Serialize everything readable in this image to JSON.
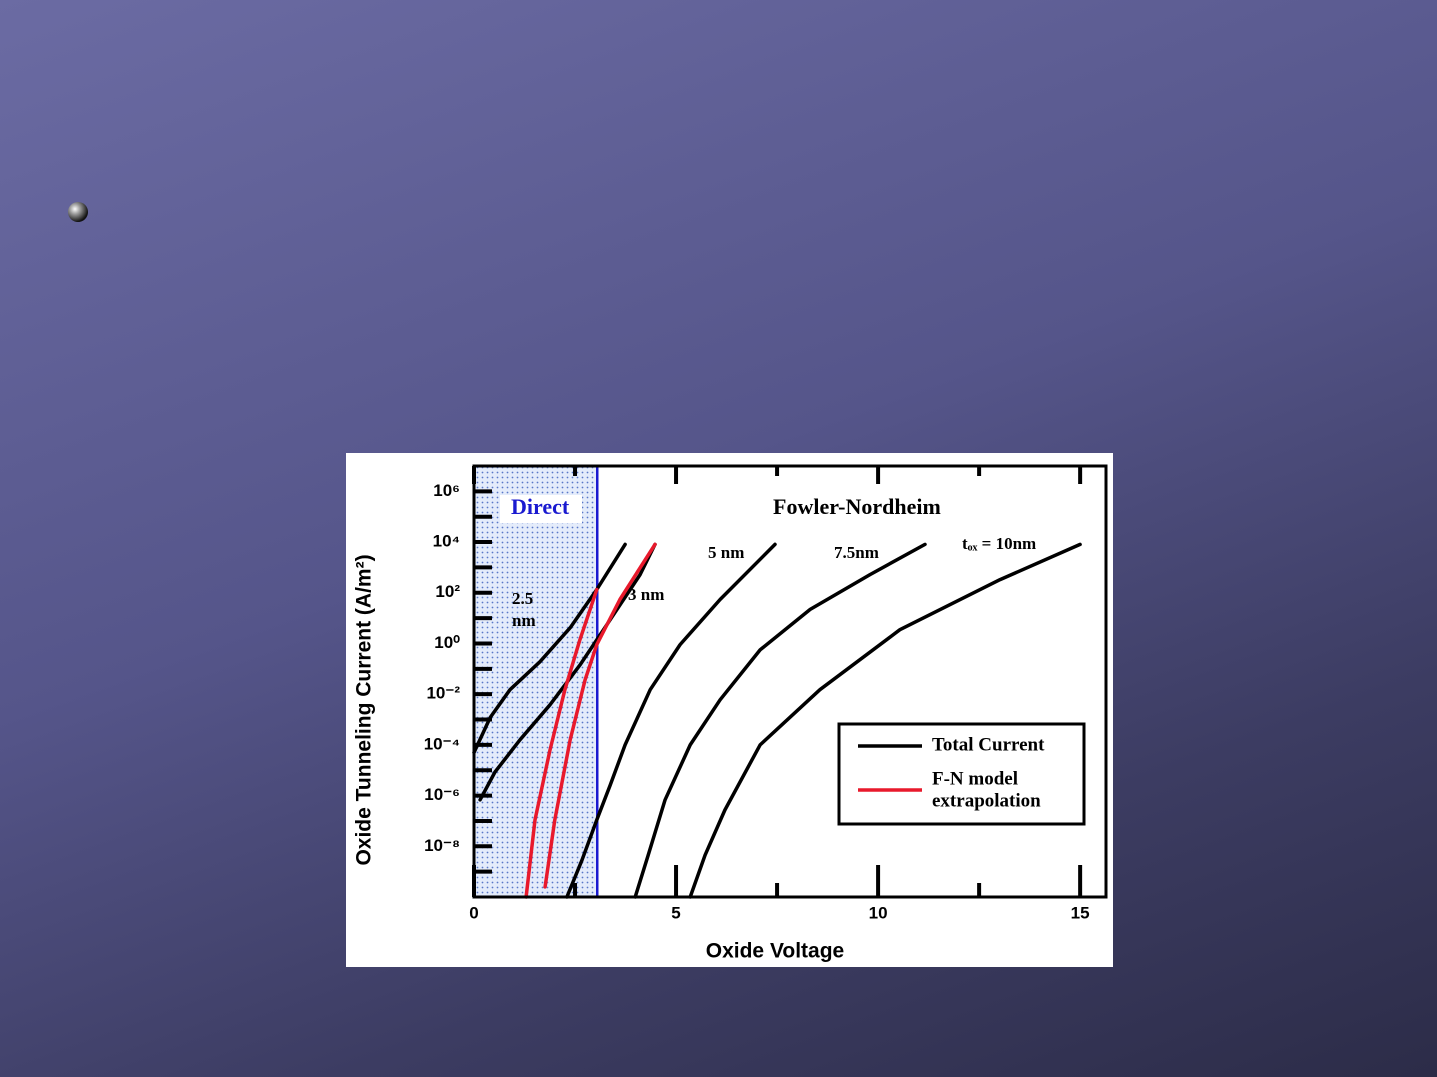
{
  "chart_data": {
    "type": "line",
    "xlabel": "Oxide Voltage",
    "ylabel": "Oxide Tunneling Current  (A/m²)",
    "xlim": [
      0,
      15.64
    ],
    "xticks": [
      0,
      5,
      10,
      15
    ],
    "xminorticks": [
      2.5,
      7.5,
      12.5
    ],
    "ylim": [
      1e-10,
      10000000.0
    ],
    "ylog": true,
    "yticks": [
      {
        "value": 1e-08,
        "label": "10⁻⁸"
      },
      {
        "value": 1e-06,
        "label": "10⁻⁶"
      },
      {
        "value": 0.0001,
        "label": "10⁻⁴"
      },
      {
        "value": 0.01,
        "label": "10⁻²"
      },
      {
        "value": 1,
        "label": "10⁰"
      },
      {
        "value": 100,
        "label": "10²"
      },
      {
        "value": 10000,
        "label": "10⁴"
      },
      {
        "value": 1000000,
        "label": "10⁶"
      }
    ],
    "yminorticks": [
      1e-09,
      1e-07,
      1e-05,
      0.001,
      0.1,
      10,
      1000,
      100000
    ],
    "direct_region": [
      0,
      3.05
    ],
    "region_labels": [
      "Direct",
      "Fowler-Nordheim"
    ],
    "legend": [
      {
        "label": [
          "Total Current"
        ],
        "color": "#000000"
      },
      {
        "label": [
          "F-N model",
          "extrapolation"
        ],
        "color": "#e8192c"
      }
    ],
    "series": [
      {
        "label": [
          "2.5",
          "nm"
        ],
        "color": "#000000",
        "x": [
          0,
          0.4,
          0.89,
          1.63,
          2.38,
          3.04,
          3.74
        ],
        "values": [
          5e-05,
          0.0012,
          0.015,
          0.19,
          4.2,
          135,
          8100
        ]
      },
      {
        "color": "#000000",
        "x": [
          0.15,
          0.52,
          1.14,
          1.88,
          2.62,
          3.37,
          4.11,
          4.48
        ],
        "values": [
          6.8e-07,
          8.5e-06,
          0.00016,
          0.0038,
          0.14,
          8.7,
          520,
          8100
        ]
      },
      {
        "color": "#e8192c",
        "x": [
          1.29,
          1.51,
          1.88,
          2.25,
          2.62,
          3.04
        ],
        "values": [
          1e-10,
          1.1e-07,
          6.3e-05,
          0.015,
          1.4,
          135
        ]
      },
      {
        "label": [
          "3 nm"
        ],
        "color": "#e8192c",
        "x": [
          1.76,
          2.0,
          2.38,
          2.75,
          3.04,
          3.61,
          4.48
        ],
        "values": [
          2.5e-10,
          1.1e-07,
          0.00016,
          0.037,
          0.9,
          54,
          8100
        ]
      },
      {
        "label": [
          "5 nm"
        ],
        "color": "#000000",
        "x": [
          2.3,
          2.67,
          3.04,
          3.37,
          3.74,
          4.36,
          5.1,
          6.09,
          7.45
        ],
        "values": [
          1e-10,
          2.8e-09,
          1.1e-07,
          2.6e-06,
          0.0001,
          0.015,
          0.9,
          54,
          8100
        ]
      },
      {
        "label": [
          "7.5nm"
        ],
        "color": "#000000",
        "x": [
          3.99,
          4.31,
          4.73,
          5.35,
          6.09,
          7.08,
          8.32,
          9.8,
          11.16
        ],
        "values": [
          1e-10,
          4.5e-09,
          6.8e-07,
          0.0001,
          0.006,
          0.56,
          22,
          520,
          8100
        ]
      },
      {
        "label": [
          "tₒₓ = 10nm"
        ],
        "color": "#000000",
        "x": [
          5.35,
          5.72,
          6.21,
          7.08,
          8.56,
          10.54,
          13.02,
          15.0
        ],
        "values": [
          1e-10,
          4.5e-09,
          2.7e-07,
          0.0001,
          0.015,
          3.5,
          330,
          8100
        ]
      }
    ]
  }
}
